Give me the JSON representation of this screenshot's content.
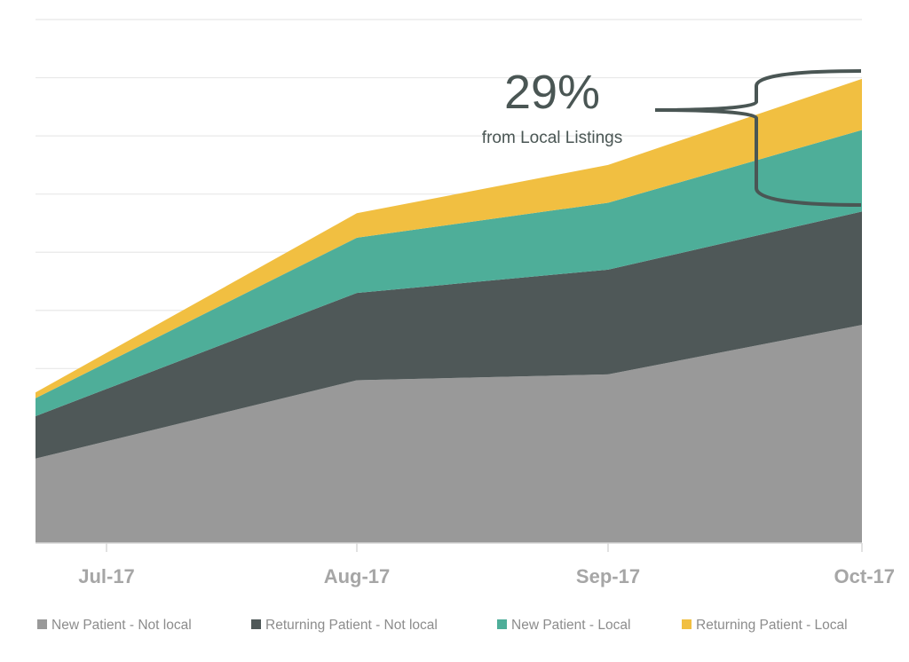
{
  "chart_data": {
    "type": "area",
    "stacked": true,
    "categories": [
      "Jul-17",
      "Aug-17",
      "Sep-17",
      "Oct-17"
    ],
    "series": [
      {
        "name": "New Patient - Not local",
        "color": "#999999",
        "values": [
          1.75,
          2.8,
          2.9,
          3.75
        ]
      },
      {
        "name": "Returning Patient - Not local",
        "color": "#4f5858",
        "values": [
          0.9,
          1.5,
          1.8,
          1.95
        ]
      },
      {
        "name": "New Patient - Local",
        "color": "#4eae99",
        "values": [
          0.45,
          0.95,
          1.15,
          1.4
        ]
      },
      {
        "name": "Returning Patient - Local",
        "color": "#f1bf41",
        "values": [
          0.17,
          0.42,
          0.65,
          0.88
        ]
      }
    ],
    "ylim": [
      0,
      9
    ],
    "grid": true,
    "legend_position": "bottom",
    "annotation": {
      "value": "29%",
      "text": "from Local Listings"
    }
  }
}
